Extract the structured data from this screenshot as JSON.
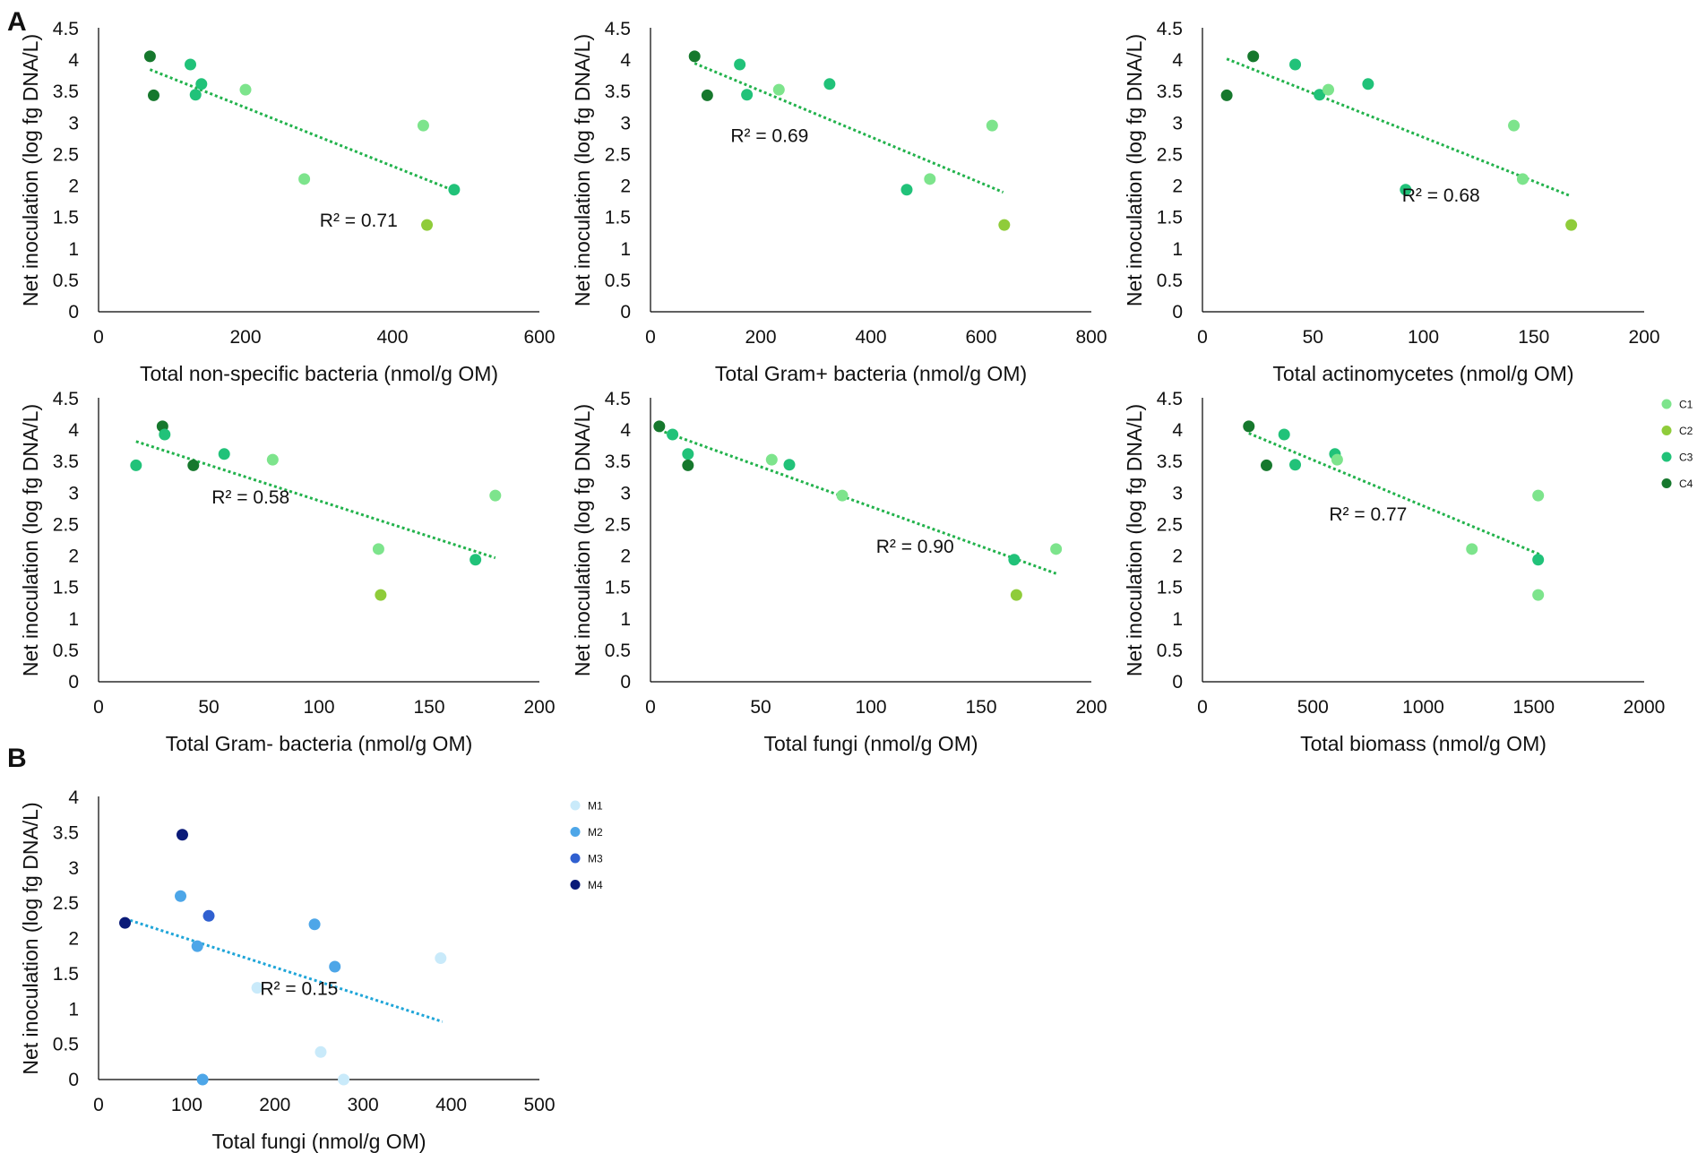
{
  "panel_labels": [
    "A",
    "B"
  ],
  "colors": {
    "C1": "#7de48c",
    "C2": "#8fcc3a",
    "C3": "#21c279",
    "C4": "#16782d",
    "M1": "#c9eafa",
    "M2": "#4da6e8",
    "M3": "#3060d0",
    "M4": "#0a1a78",
    "trend_A": "#22b24c",
    "trend_B": "#1fa5d8",
    "axis": "#000000"
  },
  "chart_data": [
    {
      "type": "scatter",
      "id": "A1",
      "xlabel": "Total non-specific bacteria (nmol/g OM)",
      "ylabel": "Net inoculation (log fg DNA/L)",
      "xlim": [
        0,
        600
      ],
      "ylim": [
        0,
        4.5
      ],
      "xticks": [
        "0",
        "200",
        "400",
        "600"
      ],
      "yticks": [
        "0",
        "0.5",
        "1",
        "1.5",
        "2",
        "2.5",
        "3",
        "3.5",
        "4",
        "4.5"
      ],
      "annotation": "R² = 0.71",
      "trendline": [
        [
          70,
          3.85
        ],
        [
          485,
          1.92
        ]
      ],
      "points": [
        {
          "x": 70,
          "y": 4.06,
          "g": "C4"
        },
        {
          "x": 75,
          "y": 3.44,
          "g": "C4"
        },
        {
          "x": 125,
          "y": 3.93,
          "g": "C3"
        },
        {
          "x": 132,
          "y": 3.45,
          "g": "C3"
        },
        {
          "x": 140,
          "y": 3.62,
          "g": "C3"
        },
        {
          "x": 200,
          "y": 3.53,
          "g": "C1"
        },
        {
          "x": 280,
          "y": 2.11,
          "g": "C1"
        },
        {
          "x": 442,
          "y": 2.96,
          "g": "C1"
        },
        {
          "x": 447,
          "y": 1.38,
          "g": "C2"
        },
        {
          "x": 484,
          "y": 1.94,
          "g": "C3"
        }
      ]
    },
    {
      "type": "scatter",
      "id": "A2",
      "xlabel": "Total Gram+ bacteria (nmol/g OM)",
      "ylabel": "Net inoculation (log fg DNA/L)",
      "xlim": [
        0,
        800
      ],
      "ylim": [
        0,
        4.5
      ],
      "xticks": [
        "0",
        "200",
        "400",
        "600",
        "800"
      ],
      "yticks": [
        "0",
        "0.5",
        "1",
        "1.5",
        "2",
        "2.5",
        "3",
        "3.5",
        "4",
        "4.5"
      ],
      "annotation": "R² = 0.69",
      "trendline": [
        [
          80,
          3.95
        ],
        [
          640,
          1.9
        ]
      ],
      "points": [
        {
          "x": 80,
          "y": 4.06,
          "g": "C4"
        },
        {
          "x": 103,
          "y": 3.44,
          "g": "C4"
        },
        {
          "x": 162,
          "y": 3.93,
          "g": "C3"
        },
        {
          "x": 175,
          "y": 3.45,
          "g": "C3"
        },
        {
          "x": 233,
          "y": 3.53,
          "g": "C1"
        },
        {
          "x": 325,
          "y": 3.62,
          "g": "C3"
        },
        {
          "x": 465,
          "y": 1.94,
          "g": "C3"
        },
        {
          "x": 507,
          "y": 2.11,
          "g": "C1"
        },
        {
          "x": 620,
          "y": 2.96,
          "g": "C1"
        },
        {
          "x": 642,
          "y": 1.38,
          "g": "C2"
        }
      ]
    },
    {
      "type": "scatter",
      "id": "A3",
      "xlabel": "Total actinomycetes (nmol/g OM)",
      "ylabel": "Net inoculation (log fg DNA/L)",
      "xlim": [
        0,
        200
      ],
      "ylim": [
        0,
        4.5
      ],
      "xticks": [
        "0",
        "50",
        "100",
        "150",
        "200"
      ],
      "yticks": [
        "0",
        "0.5",
        "1",
        "1.5",
        "2",
        "2.5",
        "3",
        "3.5",
        "4",
        "4.5"
      ],
      "annotation": "R² = 0.68",
      "trendline": [
        [
          11,
          4.02
        ],
        [
          166,
          1.85
        ]
      ],
      "points": [
        {
          "x": 11,
          "y": 3.44,
          "g": "C4"
        },
        {
          "x": 23,
          "y": 4.06,
          "g": "C4"
        },
        {
          "x": 42,
          "y": 3.93,
          "g": "C3"
        },
        {
          "x": 53,
          "y": 3.45,
          "g": "C3"
        },
        {
          "x": 57,
          "y": 3.53,
          "g": "C1"
        },
        {
          "x": 75,
          "y": 3.62,
          "g": "C3"
        },
        {
          "x": 92,
          "y": 1.94,
          "g": "C3"
        },
        {
          "x": 141,
          "y": 2.96,
          "g": "C1"
        },
        {
          "x": 145,
          "y": 2.11,
          "g": "C1"
        },
        {
          "x": 167,
          "y": 1.38,
          "g": "C2"
        }
      ]
    },
    {
      "type": "scatter",
      "id": "A4",
      "xlabel": "Total Gram- bacteria (nmol/g OM)",
      "ylabel": "Net inoculation (log fg DNA/L)",
      "xlim": [
        0,
        200
      ],
      "ylim": [
        0,
        4.5
      ],
      "xticks": [
        "0",
        "50",
        "100",
        "150",
        "200"
      ],
      "yticks": [
        "0",
        "0.5",
        "1",
        "1.5",
        "2",
        "2.5",
        "3",
        "3.5",
        "4",
        "4.5"
      ],
      "annotation": "R² = 0.58",
      "trendline": [
        [
          17,
          3.82
        ],
        [
          180,
          1.97
        ]
      ],
      "points": [
        {
          "x": 17,
          "y": 3.44,
          "g": "C3"
        },
        {
          "x": 29,
          "y": 4.06,
          "g": "C4"
        },
        {
          "x": 30,
          "y": 3.93,
          "g": "C3"
        },
        {
          "x": 43,
          "y": 3.44,
          "g": "C4"
        },
        {
          "x": 57,
          "y": 3.62,
          "g": "C3"
        },
        {
          "x": 79,
          "y": 3.53,
          "g": "C1"
        },
        {
          "x": 127,
          "y": 2.11,
          "g": "C1"
        },
        {
          "x": 128,
          "y": 1.38,
          "g": "C2"
        },
        {
          "x": 171,
          "y": 1.94,
          "g": "C3"
        },
        {
          "x": 180,
          "y": 2.96,
          "g": "C1"
        }
      ]
    },
    {
      "type": "scatter",
      "id": "A5",
      "xlabel": "Total fungi (nmol/g OM)",
      "ylabel": "Net inoculation (log fg DNA/L)",
      "xlim": [
        0,
        200
      ],
      "ylim": [
        0,
        4.5
      ],
      "xticks": [
        "0",
        "50",
        "100",
        "150",
        "200"
      ],
      "yticks": [
        "0",
        "0.5",
        "1",
        "1.5",
        "2",
        "2.5",
        "3",
        "3.5",
        "4",
        "4.5"
      ],
      "annotation": "R² = 0.90",
      "trendline": [
        [
          4,
          4.0
        ],
        [
          184,
          1.72
        ]
      ],
      "points": [
        {
          "x": 4,
          "y": 4.06,
          "g": "C4"
        },
        {
          "x": 10,
          "y": 3.93,
          "g": "C3"
        },
        {
          "x": 17,
          "y": 3.62,
          "g": "C3"
        },
        {
          "x": 17,
          "y": 3.44,
          "g": "C4"
        },
        {
          "x": 55,
          "y": 3.53,
          "g": "C1"
        },
        {
          "x": 63,
          "y": 3.45,
          "g": "C3"
        },
        {
          "x": 87,
          "y": 2.96,
          "g": "C1"
        },
        {
          "x": 165,
          "y": 1.94,
          "g": "C3"
        },
        {
          "x": 166,
          "y": 1.38,
          "g": "C2"
        },
        {
          "x": 184,
          "y": 2.11,
          "g": "C1"
        }
      ]
    },
    {
      "type": "scatter",
      "id": "A6",
      "xlabel": "Total biomass (nmol/g OM)",
      "ylabel": "Net inoculation (log fg DNA/L)",
      "xlim": [
        0,
        2000
      ],
      "ylim": [
        0,
        4.5
      ],
      "xticks": [
        "0",
        "500",
        "1000",
        "1500",
        "2000"
      ],
      "yticks": [
        "0",
        "0.5",
        "1",
        "1.5",
        "2",
        "2.5",
        "3",
        "3.5",
        "4",
        "4.5"
      ],
      "annotation": "R² = 0.77",
      "trendline": [
        [
          210,
          3.95
        ],
        [
          1530,
          2.02
        ]
      ],
      "points": [
        {
          "x": 210,
          "y": 4.06,
          "g": "C4"
        },
        {
          "x": 290,
          "y": 3.44,
          "g": "C4"
        },
        {
          "x": 370,
          "y": 3.93,
          "g": "C3"
        },
        {
          "x": 420,
          "y": 3.45,
          "g": "C3"
        },
        {
          "x": 600,
          "y": 3.62,
          "g": "C3"
        },
        {
          "x": 610,
          "y": 3.53,
          "g": "C1"
        },
        {
          "x": 1220,
          "y": 2.11,
          "g": "C1"
        },
        {
          "x": 1520,
          "y": 2.96,
          "g": "C1"
        },
        {
          "x": 1520,
          "y": 1.94,
          "g": "C3"
        },
        {
          "x": 1520,
          "y": 1.38,
          "g": "C1"
        }
      ]
    },
    {
      "type": "scatter",
      "id": "B1",
      "xlabel": "Total fungi (nmol/g OM)",
      "ylabel": "Net inoculation (log fg DNA/L)",
      "xlim": [
        0,
        500
      ],
      "ylim": [
        0,
        4
      ],
      "xticks": [
        "0",
        "100",
        "200",
        "300",
        "400",
        "500"
      ],
      "yticks": [
        "0",
        "0.5",
        "1",
        "1.5",
        "2",
        "2.5",
        "3",
        "3.5",
        "4"
      ],
      "annotation": "R² = 0.15",
      "trendline": [
        [
          30,
          2.28
        ],
        [
          390,
          0.82
        ]
      ],
      "points": [
        {
          "x": 30,
          "y": 2.22,
          "g": "M4"
        },
        {
          "x": 93,
          "y": 2.6,
          "g": "M2"
        },
        {
          "x": 95,
          "y": 3.47,
          "g": "M4"
        },
        {
          "x": 112,
          "y": 1.89,
          "g": "M2"
        },
        {
          "x": 118,
          "y": 0.0,
          "g": "M2"
        },
        {
          "x": 125,
          "y": 2.32,
          "g": "M3"
        },
        {
          "x": 180,
          "y": 1.3,
          "g": "M1"
        },
        {
          "x": 245,
          "y": 2.2,
          "g": "M2"
        },
        {
          "x": 252,
          "y": 0.39,
          "g": "M1"
        },
        {
          "x": 268,
          "y": 1.6,
          "g": "M2"
        },
        {
          "x": 278,
          "y": 0.0,
          "g": "M1"
        },
        {
          "x": 388,
          "y": 1.72,
          "g": "M1"
        }
      ]
    }
  ],
  "legends": [
    {
      "id": "legend-A",
      "entries": [
        "C1",
        "C2",
        "C3",
        "C4"
      ]
    },
    {
      "id": "legend-B",
      "entries": [
        "M1",
        "M2",
        "M3",
        "M4"
      ]
    }
  ]
}
